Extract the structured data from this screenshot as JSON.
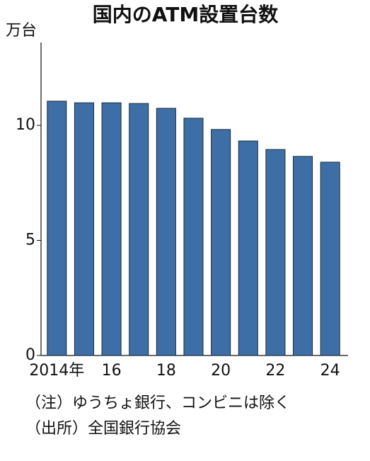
{
  "chart_data": {
    "type": "bar",
    "title": "国内のATM設置台数",
    "y_label": "万台",
    "categories": [
      "2014年",
      null,
      "16",
      null,
      "18",
      null,
      "20",
      null,
      "22",
      null,
      "24"
    ],
    "values": [
      11.05,
      10.98,
      10.98,
      10.95,
      10.74,
      10.31,
      9.82,
      9.32,
      8.95,
      8.65,
      8.4
    ],
    "color": "#3d6fa6",
    "ylim": [
      0,
      13.6
    ],
    "yticks": [
      0,
      5,
      10
    ],
    "grid": false,
    "notes": [
      "（注）ゆうちょ銀行、コンビニは除く",
      "（出所）全国銀行協会"
    ]
  }
}
